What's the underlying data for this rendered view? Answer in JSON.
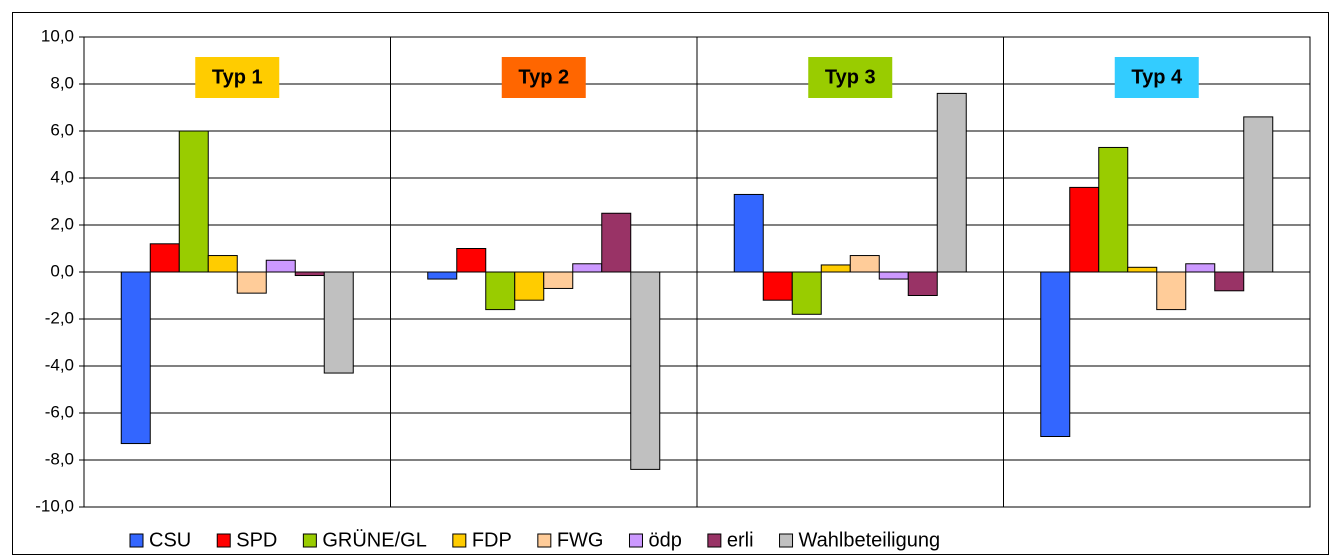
{
  "chart_data": {
    "type": "bar",
    "categories": [
      "Typ 1",
      "Typ 2",
      "Typ 3",
      "Typ 4"
    ],
    "category_label_colors": [
      "#ffcc00",
      "#ff6600",
      "#99cc00",
      "#33ccff"
    ],
    "series": [
      {
        "name": "CSU",
        "color": "#3366ff",
        "values": [
          -7.3,
          -0.3,
          3.3,
          -7.0
        ]
      },
      {
        "name": "SPD",
        "color": "#ff0000",
        "values": [
          1.2,
          1.0,
          -1.2,
          3.6
        ]
      },
      {
        "name": "GRÜNE/GL",
        "color": "#99cc00",
        "values": [
          6.0,
          -1.6,
          -1.8,
          5.3
        ]
      },
      {
        "name": "FDP",
        "color": "#ffcc00",
        "values": [
          0.7,
          -1.2,
          0.3,
          0.2
        ]
      },
      {
        "name": "FWG",
        "color": "#ffcc99",
        "values": [
          -0.9,
          -0.7,
          0.7,
          -1.6
        ]
      },
      {
        "name": "ödp",
        "color": "#cc99ff",
        "values": [
          0.5,
          0.35,
          -0.3,
          0.35
        ]
      },
      {
        "name": "erli",
        "color": "#993366",
        "values": [
          -0.15,
          2.5,
          -1.0,
          -0.8
        ]
      },
      {
        "name": "Wahlbeteiligung",
        "color": "#c0c0c0",
        "values": [
          -4.3,
          -8.4,
          7.6,
          6.6
        ]
      }
    ],
    "ylim": [
      -10,
      10
    ],
    "yticks": [
      {
        "value": -10,
        "label": "-10,0"
      },
      {
        "value": -8,
        "label": "-8,0"
      },
      {
        "value": -6,
        "label": "-6,0"
      },
      {
        "value": -4,
        "label": "-4,0"
      },
      {
        "value": -2,
        "label": "-2,0"
      },
      {
        "value": 0,
        "label": "0,0"
      },
      {
        "value": 2,
        "label": "2,0"
      },
      {
        "value": 4,
        "label": "4,0"
      },
      {
        "value": 6,
        "label": "6,0"
      },
      {
        "value": 8,
        "label": "8,0"
      },
      {
        "value": 10,
        "label": "10,0"
      }
    ],
    "grid": true,
    "legend": "bottom"
  }
}
